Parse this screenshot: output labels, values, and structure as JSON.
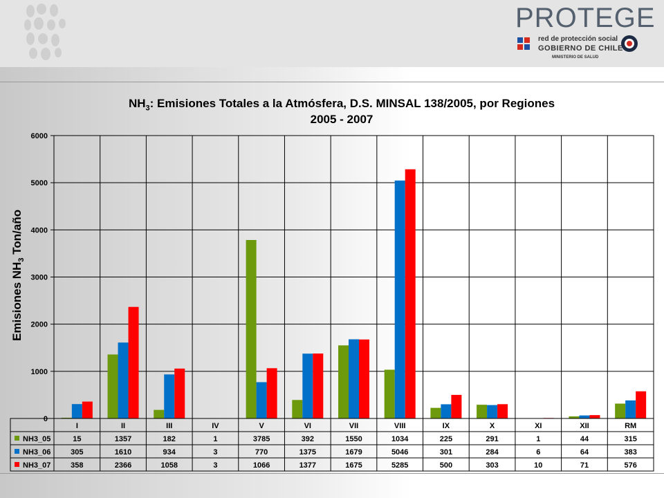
{
  "header": {
    "brand": "PROTEGE",
    "subtitle_1": "red de protección social",
    "subtitle_2": "GOBIERNO DE CHILE",
    "subtitle_3": "MINISTERIO DE SALUD"
  },
  "colors": {
    "NH3_05": "#6c9a0c",
    "NH3_06": "#0070c8",
    "NH3_07": "#ff0000"
  },
  "chart_data": {
    "type": "bar",
    "title": "NH3: Emisiones Totales a la Atmósfera, D.S. MINSAL 138/2005, por Regiones",
    "title_prefix": "NH",
    "title_sub": "3",
    "title_rest": ": Emisiones Totales a la Atmósfera, D.S. MINSAL 138/2005, por Regiones",
    "subtitle": "2005 - 2007",
    "ylabel": "Emisiones NH3 Ton/año",
    "ylabel_prefix": "Emisiones NH",
    "ylabel_sub": "3",
    "ylabel_rest": " Ton/año",
    "ylim": [
      0,
      6000
    ],
    "yticks": [
      0,
      1000,
      2000,
      3000,
      4000,
      5000,
      6000
    ],
    "grid": true,
    "legend": "data table",
    "categories": [
      "I",
      "II",
      "III",
      "IV",
      "V",
      "VI",
      "VII",
      "VIII",
      "IX",
      "X",
      "XI",
      "XII",
      "RM"
    ],
    "series": [
      {
        "name": "NH3_05",
        "values": [
          15,
          1357,
          182,
          1,
          3785,
          392,
          1550,
          1034,
          225,
          291,
          1,
          44,
          315
        ]
      },
      {
        "name": "NH3_06",
        "values": [
          305,
          1610,
          934,
          3,
          770,
          1375,
          1679,
          5046,
          301,
          284,
          6,
          64,
          383
        ]
      },
      {
        "name": "NH3_07",
        "values": [
          358,
          2366,
          1058,
          3,
          1066,
          1377,
          1675,
          5285,
          500,
          303,
          10,
          71,
          576
        ]
      }
    ]
  }
}
